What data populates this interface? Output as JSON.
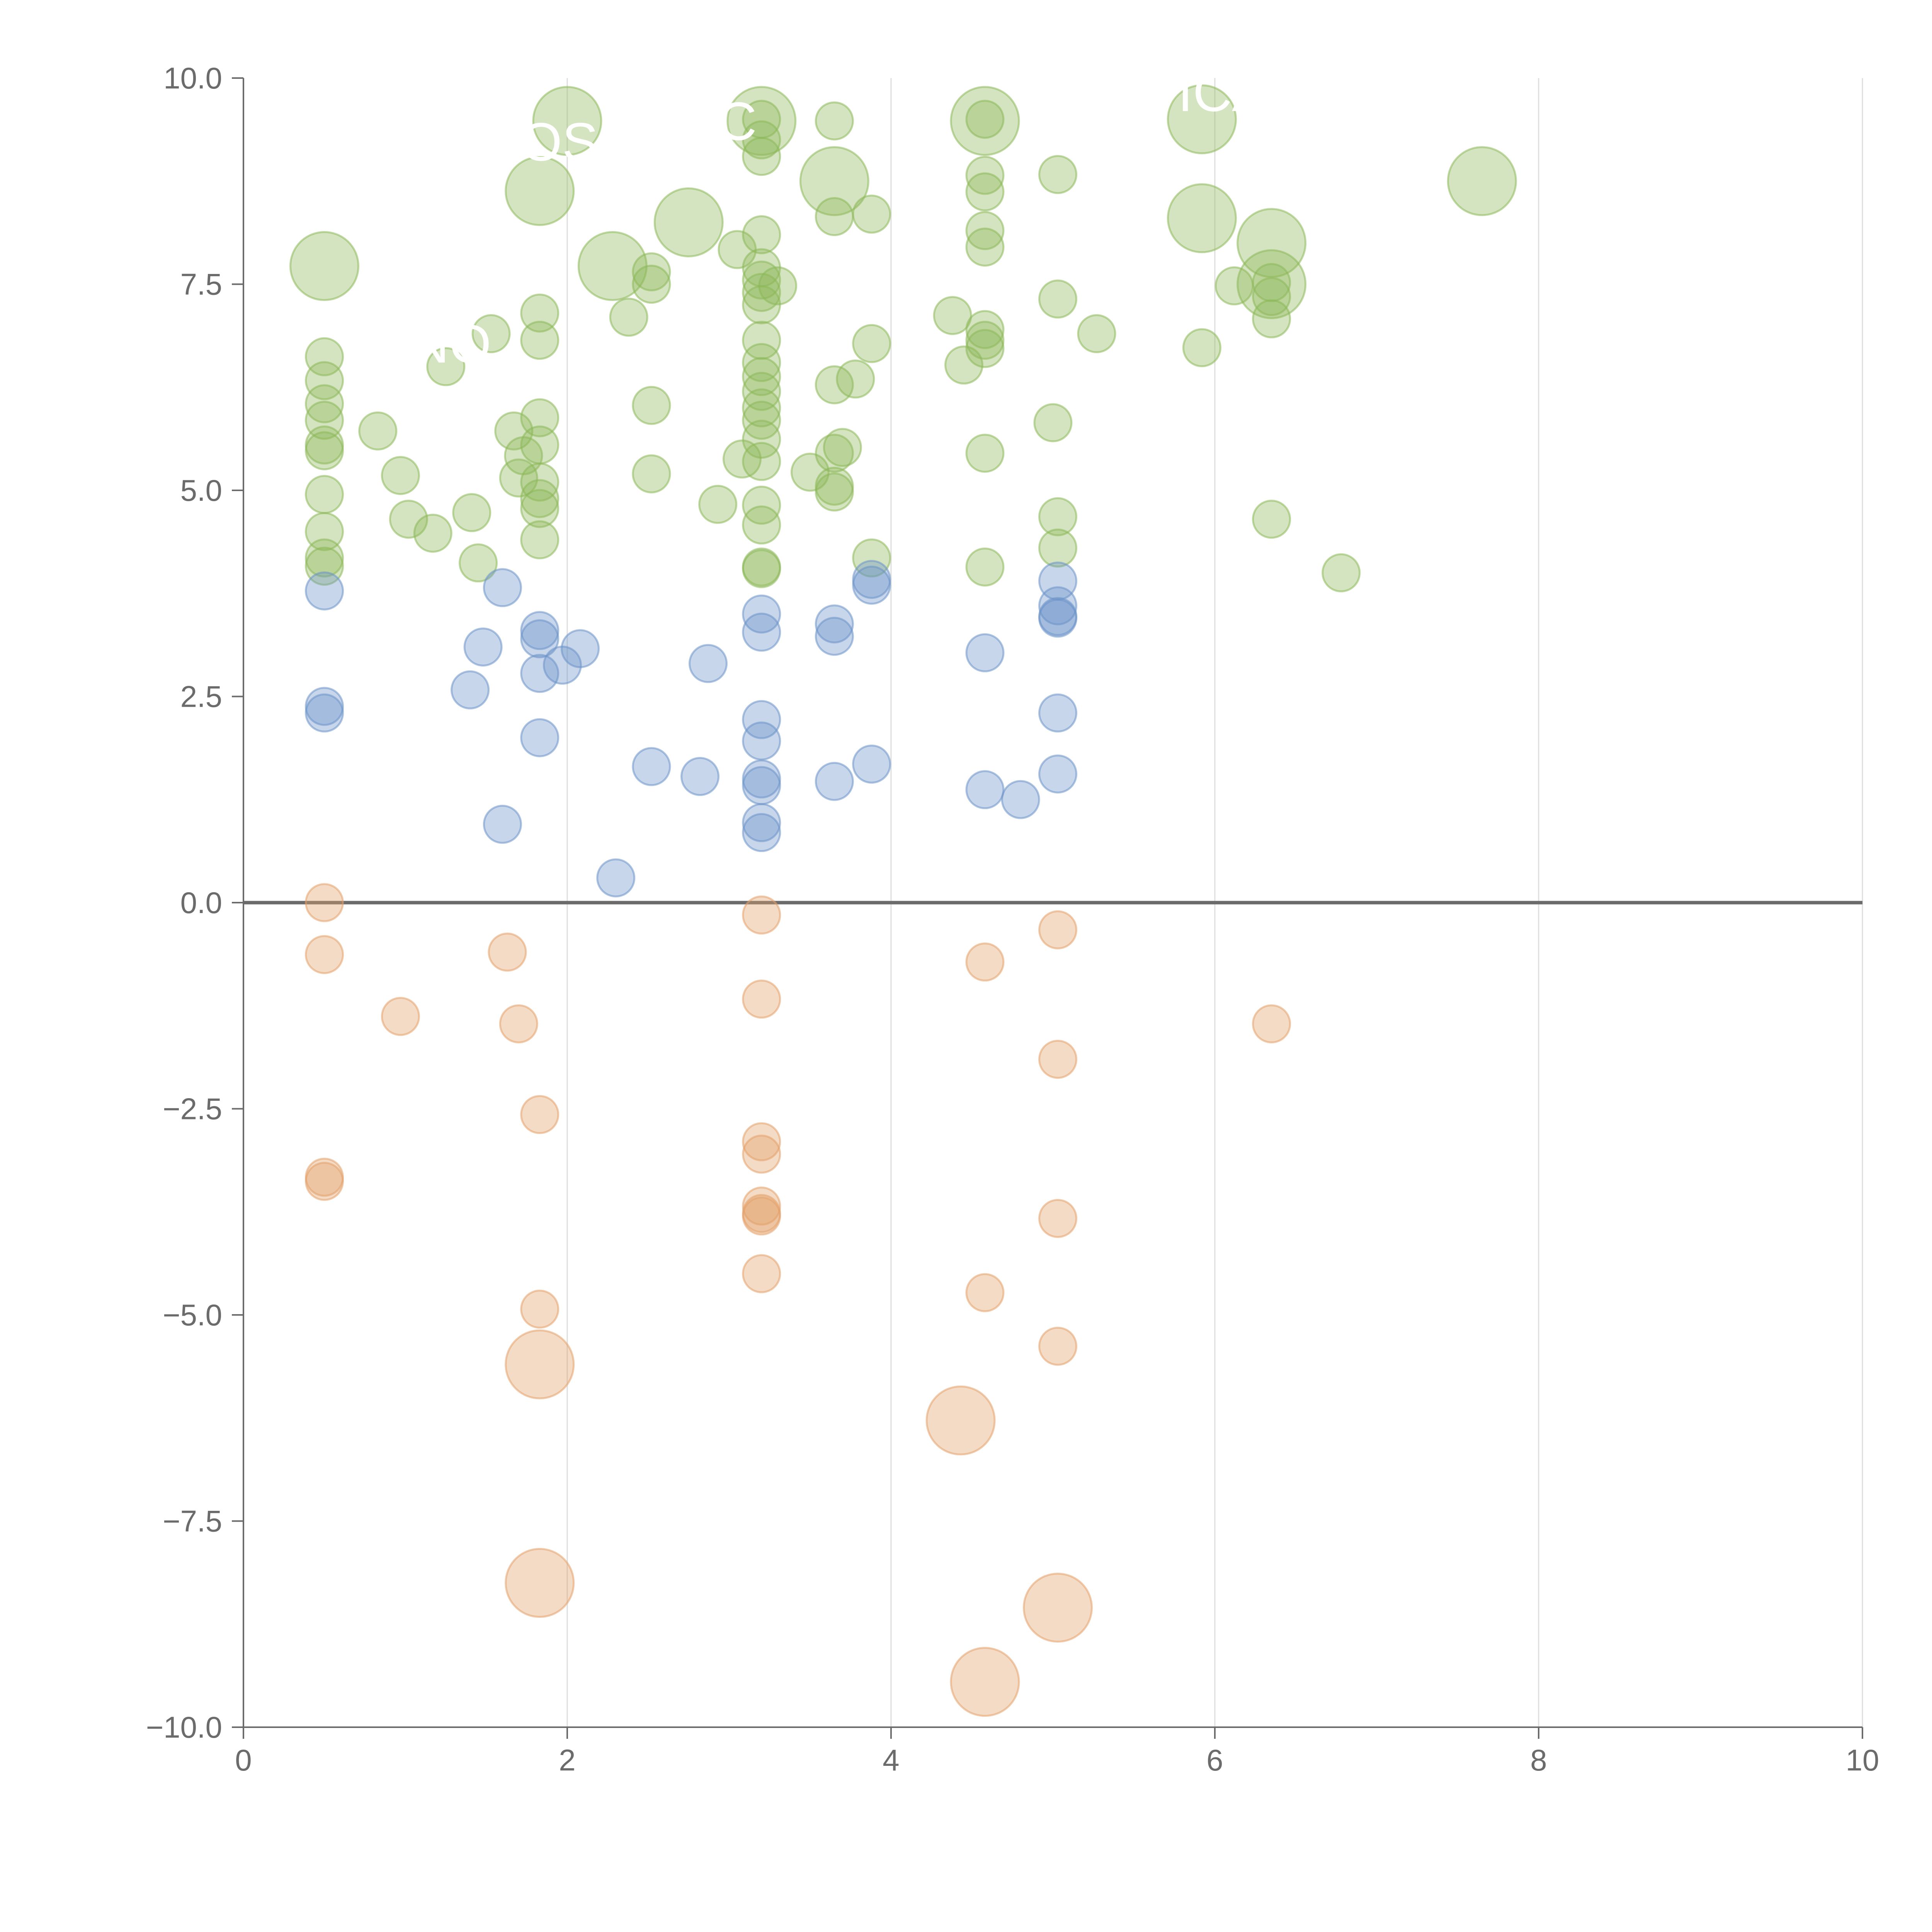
{
  "colors": {
    "positive_high": "#8db85a",
    "positive_mid": "#6b93c8",
    "negative": "#e3a06a",
    "axis": "#6b6b6b",
    "grid": "#dddddd",
    "label": "#ffffff"
  },
  "chart_data": {
    "type": "scatter",
    "title": "",
    "xlabel": "",
    "ylabel": "",
    "xlim": [
      0,
      10
    ],
    "ylim": [
      -10,
      10
    ],
    "x_ticks": [
      0,
      2,
      4,
      6,
      8,
      10
    ],
    "y_ticks": [
      -10,
      -7.5,
      -5,
      -2.5,
      0,
      2.5,
      5,
      7.5,
      10
    ],
    "x_tick_labels": [
      "0",
      "2",
      "4",
      "6",
      "8",
      "10"
    ],
    "y_tick_labels": [
      "−10.0",
      "−7.5",
      "−5.0",
      "−2.5",
      "0.0",
      "2.5",
      "5.0",
      "7.5",
      "10.0"
    ],
    "grid": "vertical gridlines at x ticks, horizontal reference line at y = 0",
    "legend": "none",
    "size_scale": "large bubbles marked with 1, small with 0",
    "groups": [
      {
        "color_key": "positive_high",
        "points": [
          [
            0.5,
            7.72,
            1
          ],
          [
            0.5,
            6.62,
            0
          ],
          [
            0.5,
            6.33,
            0
          ],
          [
            0.5,
            6.05,
            0
          ],
          [
            0.5,
            5.85,
            0
          ],
          [
            0.5,
            5.55,
            0
          ],
          [
            0.5,
            5.48,
            0
          ],
          [
            0.5,
            4.95,
            0
          ],
          [
            0.5,
            4.5,
            0
          ],
          [
            0.5,
            4.18,
            0
          ],
          [
            0.5,
            4.08,
            0
          ],
          [
            0.83,
            5.72,
            0
          ],
          [
            0.97,
            5.18,
            0
          ],
          [
            1.02,
            4.65,
            0
          ],
          [
            1.17,
            4.48,
            0
          ],
          [
            1.25,
            6.5,
            0
          ],
          [
            1.41,
            4.73,
            0
          ],
          [
            1.45,
            4.12,
            0
          ],
          [
            1.53,
            6.9,
            0
          ],
          [
            1.67,
            5.72,
            0
          ],
          [
            1.7,
            5.15,
            0
          ],
          [
            1.73,
            5.42,
            0
          ],
          [
            1.83,
            7.15,
            0
          ],
          [
            1.83,
            6.82,
            0
          ],
          [
            1.83,
            5.88,
            0
          ],
          [
            1.83,
            5.55,
            0
          ],
          [
            1.83,
            5.1,
            0
          ],
          [
            1.83,
            4.9,
            0
          ],
          [
            1.83,
            4.78,
            0
          ],
          [
            1.83,
            4.4,
            0
          ],
          [
            1.83,
            8.63,
            1
          ],
          [
            2.0,
            9.48,
            1
          ],
          [
            2.28,
            7.72,
            1
          ],
          [
            2.38,
            7.1,
            0
          ],
          [
            2.52,
            7.65,
            0
          ],
          [
            2.52,
            7.5,
            0
          ],
          [
            2.52,
            6.03,
            0
          ],
          [
            2.52,
            5.2,
            0
          ],
          [
            2.75,
            8.25,
            1
          ],
          [
            2.93,
            4.83,
            0
          ],
          [
            3.05,
            7.92,
            0
          ],
          [
            3.08,
            5.38,
            0
          ],
          [
            3.2,
            9.48,
            1
          ],
          [
            3.2,
            9.5,
            0
          ],
          [
            3.2,
            9.25,
            0
          ],
          [
            3.2,
            9.05,
            0
          ],
          [
            3.2,
            8.1,
            0
          ],
          [
            3.2,
            7.7,
            0
          ],
          [
            3.2,
            7.55,
            0
          ],
          [
            3.2,
            7.4,
            0
          ],
          [
            3.2,
            7.25,
            0
          ],
          [
            3.2,
            6.82,
            0
          ],
          [
            3.2,
            6.55,
            0
          ],
          [
            3.2,
            6.38,
            0
          ],
          [
            3.2,
            6.2,
            0
          ],
          [
            3.2,
            6.0,
            0
          ],
          [
            3.2,
            5.85,
            0
          ],
          [
            3.2,
            5.62,
            0
          ],
          [
            3.2,
            5.35,
            0
          ],
          [
            3.2,
            4.82,
            0
          ],
          [
            3.2,
            4.58,
            0
          ],
          [
            3.2,
            4.07,
            0
          ],
          [
            3.2,
            4.05,
            0
          ],
          [
            3.3,
            7.48,
            0
          ],
          [
            3.5,
            5.22,
            0
          ],
          [
            3.65,
            9.48,
            0
          ],
          [
            3.65,
            8.75,
            1
          ],
          [
            3.65,
            8.32,
            0
          ],
          [
            3.65,
            6.28,
            0
          ],
          [
            3.65,
            5.45,
            0
          ],
          [
            3.65,
            5.05,
            0
          ],
          [
            3.65,
            4.98,
            0
          ],
          [
            3.7,
            5.52,
            0
          ],
          [
            3.78,
            6.35,
            0
          ],
          [
            3.88,
            8.35,
            0
          ],
          [
            3.88,
            6.78,
            0
          ],
          [
            3.88,
            4.18,
            0
          ],
          [
            4.38,
            7.12,
            0
          ],
          [
            4.45,
            6.52,
            0
          ],
          [
            4.58,
            9.48,
            1
          ],
          [
            4.58,
            9.5,
            0
          ],
          [
            4.58,
            8.82,
            0
          ],
          [
            4.58,
            8.62,
            0
          ],
          [
            4.58,
            8.15,
            0
          ],
          [
            4.58,
            7.95,
            0
          ],
          [
            4.58,
            6.95,
            0
          ],
          [
            4.58,
            6.82,
            0
          ],
          [
            4.58,
            6.72,
            0
          ],
          [
            4.58,
            5.45,
            0
          ],
          [
            4.58,
            4.07,
            0
          ],
          [
            5.03,
            8.83,
            0
          ],
          [
            5.03,
            7.32,
            0
          ],
          [
            5.0,
            5.82,
            0
          ],
          [
            5.03,
            4.68,
            0
          ],
          [
            5.03,
            4.3,
            0
          ],
          [
            5.27,
            6.9,
            0
          ],
          [
            5.92,
            9.5,
            1
          ],
          [
            5.92,
            8.3,
            1
          ],
          [
            5.92,
            6.73,
            0
          ],
          [
            6.12,
            7.48,
            0
          ],
          [
            6.35,
            8.0,
            1
          ],
          [
            6.35,
            7.5,
            1
          ],
          [
            6.35,
            7.52,
            0
          ],
          [
            6.35,
            7.35,
            0
          ],
          [
            6.35,
            7.08,
            0
          ],
          [
            6.35,
            4.65,
            0
          ],
          [
            6.78,
            4.0,
            0
          ],
          [
            7.65,
            8.75,
            1
          ]
        ]
      },
      {
        "color_key": "positive_mid",
        "points": [
          [
            0.5,
            3.78,
            0
          ],
          [
            0.5,
            2.38,
            0
          ],
          [
            0.5,
            2.3,
            0
          ],
          [
            1.4,
            2.58,
            0
          ],
          [
            1.48,
            3.1,
            0
          ],
          [
            1.6,
            3.82,
            0
          ],
          [
            1.6,
            0.95,
            0
          ],
          [
            1.83,
            3.3,
            0
          ],
          [
            1.83,
            3.2,
            0
          ],
          [
            1.83,
            2.78,
            0
          ],
          [
            1.83,
            2.0,
            0
          ],
          [
            1.97,
            2.88,
            0
          ],
          [
            2.08,
            3.08,
            0
          ],
          [
            2.3,
            0.3,
            0
          ],
          [
            2.52,
            1.65,
            0
          ],
          [
            2.82,
            1.53,
            0
          ],
          [
            2.87,
            2.9,
            0
          ],
          [
            3.2,
            3.5,
            0
          ],
          [
            3.2,
            3.28,
            0
          ],
          [
            3.2,
            2.22,
            0
          ],
          [
            3.2,
            1.96,
            0
          ],
          [
            3.2,
            1.5,
            0
          ],
          [
            3.2,
            1.42,
            0
          ],
          [
            3.2,
            0.97,
            0
          ],
          [
            3.2,
            0.85,
            0
          ],
          [
            3.65,
            3.38,
            0
          ],
          [
            3.65,
            3.23,
            0
          ],
          [
            3.65,
            1.47,
            0
          ],
          [
            3.88,
            3.92,
            0
          ],
          [
            3.88,
            3.85,
            0
          ],
          [
            3.88,
            1.68,
            0
          ],
          [
            4.58,
            3.03,
            0
          ],
          [
            4.58,
            1.37,
            0
          ],
          [
            4.8,
            1.25,
            0
          ],
          [
            5.03,
            3.9,
            0
          ],
          [
            5.03,
            3.6,
            0
          ],
          [
            5.03,
            3.47,
            0
          ],
          [
            5.03,
            3.45,
            0
          ],
          [
            5.03,
            2.3,
            0
          ],
          [
            5.03,
            1.56,
            0
          ]
        ]
      },
      {
        "color_key": "negative",
        "points": [
          [
            0.5,
            0.0,
            0
          ],
          [
            0.5,
            -0.63,
            0
          ],
          [
            0.5,
            -3.33,
            0
          ],
          [
            0.5,
            -3.38,
            0
          ],
          [
            0.97,
            -1.38,
            0
          ],
          [
            1.63,
            -0.6,
            0
          ],
          [
            1.7,
            -1.47,
            0
          ],
          [
            1.83,
            -2.57,
            0
          ],
          [
            1.83,
            -4.93,
            0
          ],
          [
            1.83,
            -5.6,
            1
          ],
          [
            1.83,
            -8.25,
            1
          ],
          [
            3.2,
            -0.15,
            0
          ],
          [
            3.2,
            -1.17,
            0
          ],
          [
            3.2,
            -2.9,
            0
          ],
          [
            3.2,
            -3.05,
            0
          ],
          [
            3.2,
            -3.68,
            0
          ],
          [
            3.2,
            -3.77,
            0
          ],
          [
            3.2,
            -3.8,
            0
          ],
          [
            3.2,
            -4.5,
            0
          ],
          [
            4.43,
            -6.28,
            1
          ],
          [
            4.58,
            -0.72,
            0
          ],
          [
            4.58,
            -4.73,
            0
          ],
          [
            4.58,
            -9.45,
            1
          ],
          [
            5.03,
            -0.33,
            0
          ],
          [
            5.03,
            -1.9,
            0
          ],
          [
            5.03,
            -3.83,
            0
          ],
          [
            5.03,
            -5.38,
            0
          ],
          [
            5.03,
            -8.55,
            1
          ],
          [
            6.35,
            -1.47,
            0
          ]
        ]
      }
    ],
    "annotations": [
      {
        "text": "NO",
        "x": 1.28,
        "y": 6.55
      },
      {
        "text": "OS",
        "x": 1.95,
        "y": 9.0
      },
      {
        "text": "C",
        "x": 3.05,
        "y": 9.25
      },
      {
        "text": "ICA",
        "x": 6.05,
        "y": 9.6
      }
    ]
  }
}
